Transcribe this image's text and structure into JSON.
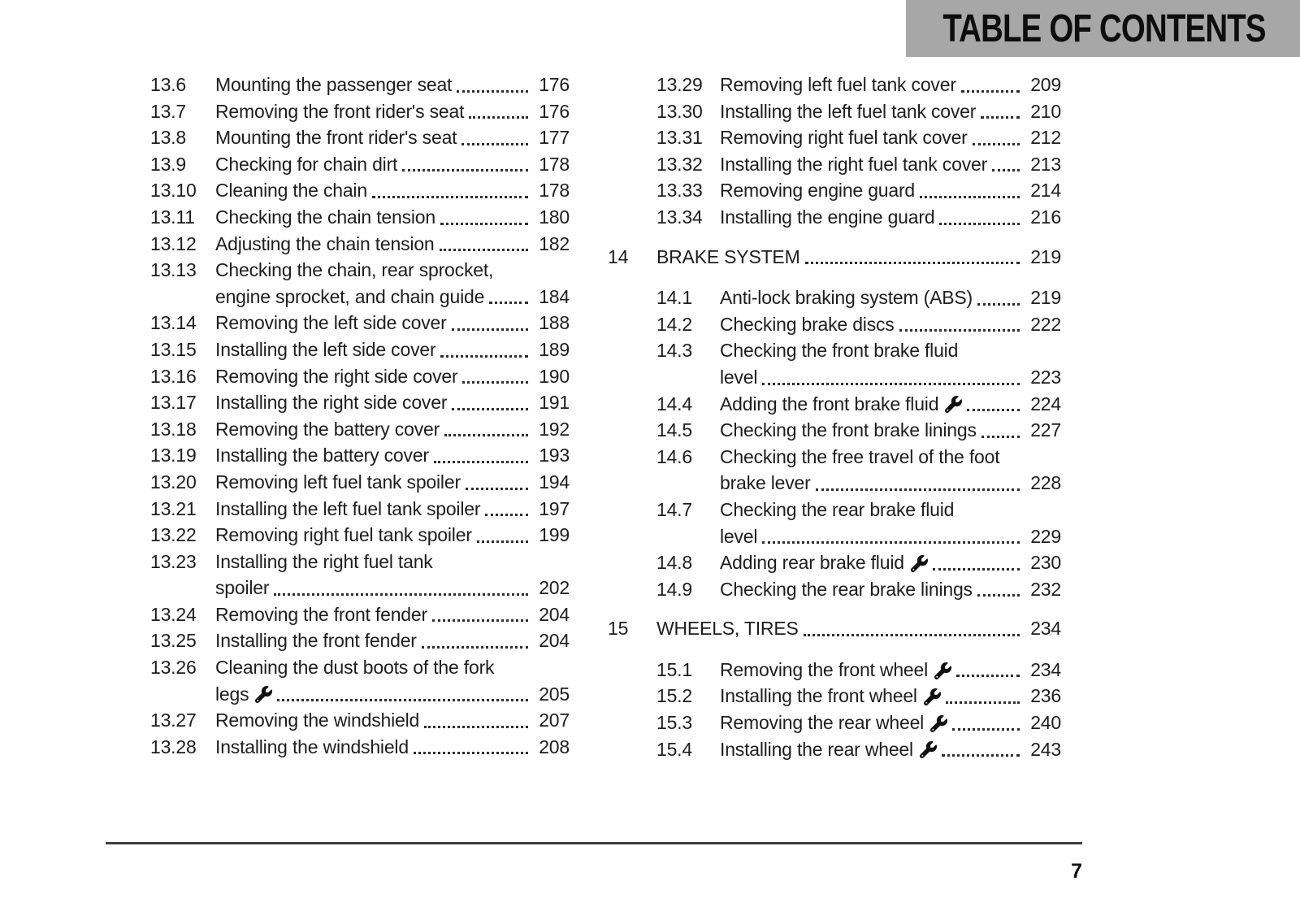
{
  "header": {
    "title": "TABLE OF CONTENTS",
    "bg_color": "#a7a7a7",
    "text_color": "#0e0e0e"
  },
  "footer": {
    "page_number": "7"
  },
  "icons": {
    "wrench": "wrench-icon"
  },
  "toc": {
    "columns": [
      {
        "name": "left",
        "items": [
          {
            "type": "entry",
            "num": "13.6",
            "lines": [
              "Mounting the passenger seat"
            ],
            "page": "176"
          },
          {
            "type": "entry",
            "num": "13.7",
            "lines": [
              "Removing the front rider's seat"
            ],
            "page": "176"
          },
          {
            "type": "entry",
            "num": "13.8",
            "lines": [
              "Mounting the front rider's seat"
            ],
            "page": "177"
          },
          {
            "type": "entry",
            "num": "13.9",
            "lines": [
              "Checking for chain dirt"
            ],
            "page": "178"
          },
          {
            "type": "entry",
            "num": "13.10",
            "lines": [
              "Cleaning the chain"
            ],
            "page": "178"
          },
          {
            "type": "entry",
            "num": "13.11",
            "lines": [
              "Checking the chain tension"
            ],
            "page": "180"
          },
          {
            "type": "entry",
            "num": "13.12",
            "lines": [
              "Adjusting the chain tension"
            ],
            "page": "182"
          },
          {
            "type": "entry",
            "num": "13.13",
            "lines": [
              "Checking the chain, rear sprocket,",
              "engine sprocket, and chain guide"
            ],
            "page": "184"
          },
          {
            "type": "entry",
            "num": "13.14",
            "lines": [
              "Removing the left side cover"
            ],
            "page": "188"
          },
          {
            "type": "entry",
            "num": "13.15",
            "lines": [
              "Installing the left side cover"
            ],
            "page": "189"
          },
          {
            "type": "entry",
            "num": "13.16",
            "lines": [
              "Removing the right side cover"
            ],
            "page": "190"
          },
          {
            "type": "entry",
            "num": "13.17",
            "lines": [
              "Installing the right side cover"
            ],
            "page": "191"
          },
          {
            "type": "entry",
            "num": "13.18",
            "lines": [
              "Removing the battery cover"
            ],
            "page": "192"
          },
          {
            "type": "entry",
            "num": "13.19",
            "lines": [
              "Installing the battery cover"
            ],
            "page": "193"
          },
          {
            "type": "entry",
            "num": "13.20",
            "lines": [
              "Removing left fuel tank spoiler"
            ],
            "page": "194"
          },
          {
            "type": "entry",
            "num": "13.21",
            "lines": [
              "Installing the left fuel tank spoiler"
            ],
            "page": "197"
          },
          {
            "type": "entry",
            "num": "13.22",
            "lines": [
              "Removing right fuel tank spoiler"
            ],
            "page": "199"
          },
          {
            "type": "entry",
            "num": "13.23",
            "lines": [
              "Installing the right fuel tank",
              "spoiler"
            ],
            "page": "202"
          },
          {
            "type": "entry",
            "num": "13.24",
            "lines": [
              "Removing the front fender"
            ],
            "page": "204"
          },
          {
            "type": "entry",
            "num": "13.25",
            "lines": [
              "Installing the front fender"
            ],
            "page": "204"
          },
          {
            "type": "entry",
            "num": "13.26",
            "lines": [
              "Cleaning the dust boots of the fork",
              "legs"
            ],
            "page": "205",
            "icon": "wrench"
          },
          {
            "type": "entry",
            "num": "13.27",
            "lines": [
              "Removing the windshield"
            ],
            "page": "207"
          },
          {
            "type": "entry",
            "num": "13.28",
            "lines": [
              "Installing the windshield"
            ],
            "page": "208"
          }
        ]
      },
      {
        "name": "right",
        "items": [
          {
            "type": "entry",
            "num": "13.29",
            "lines": [
              "Removing left fuel tank cover"
            ],
            "page": "209"
          },
          {
            "type": "entry",
            "num": "13.30",
            "lines": [
              "Installing the left fuel tank cover"
            ],
            "page": "210"
          },
          {
            "type": "entry",
            "num": "13.31",
            "lines": [
              "Removing right fuel tank cover"
            ],
            "page": "212"
          },
          {
            "type": "entry",
            "num": "13.32",
            "lines": [
              "Installing the right fuel tank cover"
            ],
            "page": "213"
          },
          {
            "type": "entry",
            "num": "13.33",
            "lines": [
              "Removing engine guard"
            ],
            "page": "214"
          },
          {
            "type": "entry",
            "num": "13.34",
            "lines": [
              "Installing the engine guard"
            ],
            "page": "216"
          },
          {
            "type": "chapter",
            "num": "14",
            "lines": [
              "BRAKE SYSTEM"
            ],
            "page": "219"
          },
          {
            "type": "entry",
            "num": "14.1",
            "lines": [
              "Anti-lock braking system (ABS)"
            ],
            "page": "219"
          },
          {
            "type": "entry",
            "num": "14.2",
            "lines": [
              "Checking brake discs"
            ],
            "page": "222"
          },
          {
            "type": "entry",
            "num": "14.3",
            "lines": [
              "Checking the front brake fluid",
              "level"
            ],
            "page": "223"
          },
          {
            "type": "entry",
            "num": "14.4",
            "lines": [
              "Adding the front brake fluid"
            ],
            "page": "224",
            "icon": "wrench"
          },
          {
            "type": "entry",
            "num": "14.5",
            "lines": [
              "Checking the front brake linings"
            ],
            "page": "227"
          },
          {
            "type": "entry",
            "num": "14.6",
            "lines": [
              "Checking the free travel of the foot",
              "brake lever"
            ],
            "page": "228"
          },
          {
            "type": "entry",
            "num": "14.7",
            "lines": [
              "Checking the rear brake fluid",
              "level"
            ],
            "page": "229"
          },
          {
            "type": "entry",
            "num": "14.8",
            "lines": [
              "Adding rear brake fluid"
            ],
            "page": "230",
            "icon": "wrench"
          },
          {
            "type": "entry",
            "num": "14.9",
            "lines": [
              "Checking the rear brake linings"
            ],
            "page": "232"
          },
          {
            "type": "chapter",
            "num": "15",
            "lines": [
              "WHEELS, TIRES"
            ],
            "page": "234"
          },
          {
            "type": "entry",
            "num": "15.1",
            "lines": [
              "Removing the front wheel"
            ],
            "page": "234",
            "icon": "wrench"
          },
          {
            "type": "entry",
            "num": "15.2",
            "lines": [
              "Installing the front wheel"
            ],
            "page": "236",
            "icon": "wrench"
          },
          {
            "type": "entry",
            "num": "15.3",
            "lines": [
              "Removing the rear wheel"
            ],
            "page": "240",
            "icon": "wrench"
          },
          {
            "type": "entry",
            "num": "15.4",
            "lines": [
              "Installing the rear wheel"
            ],
            "page": "243",
            "icon": "wrench"
          }
        ]
      }
    ]
  }
}
